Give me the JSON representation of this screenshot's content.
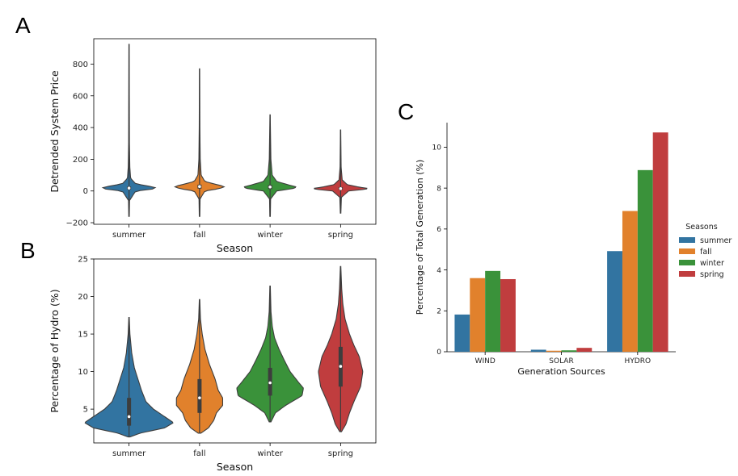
{
  "panels": {
    "a": "A",
    "b": "B",
    "c": "C"
  },
  "chart_data": [
    {
      "panel": "A",
      "type": "violin",
      "categories": [
        "summer",
        "fall",
        "winter",
        "spring"
      ],
      "colors": [
        "#3274a1",
        "#e1812c",
        "#3a923a",
        "#c03d3e"
      ],
      "xlabel": "Season",
      "ylabel": "Detrended System Price",
      "ylim": [
        -210,
        960
      ],
      "yticks": [
        -200,
        0,
        200,
        400,
        600,
        800
      ],
      "ytick_labels": [
        "−200",
        "0",
        "200",
        "400",
        "600",
        "800"
      ],
      "distributions": [
        {
          "min": -160,
          "max": 925,
          "median": 18,
          "q1": 10,
          "q3": 28,
          "profile": [
            [
              -160,
              0.01
            ],
            [
              -60,
              0.02
            ],
            [
              0,
              0.25
            ],
            [
              10,
              0.85
            ],
            [
              20,
              1.0
            ],
            [
              30,
              0.75
            ],
            [
              45,
              0.25
            ],
            [
              80,
              0.06
            ],
            [
              150,
              0.03
            ],
            [
              300,
              0.015
            ],
            [
              600,
              0.01
            ],
            [
              925,
              0.005
            ]
          ]
        },
        {
          "min": -160,
          "max": 770,
          "median": 28,
          "q1": 15,
          "q3": 40,
          "profile": [
            [
              -160,
              0.01
            ],
            [
              -50,
              0.02
            ],
            [
              0,
              0.2
            ],
            [
              15,
              0.75
            ],
            [
              28,
              0.95
            ],
            [
              40,
              0.65
            ],
            [
              60,
              0.2
            ],
            [
              100,
              0.06
            ],
            [
              200,
              0.025
            ],
            [
              400,
              0.012
            ],
            [
              770,
              0.005
            ]
          ]
        },
        {
          "min": -160,
          "max": 480,
          "median": 25,
          "q1": 12,
          "q3": 38,
          "profile": [
            [
              -160,
              0.01
            ],
            [
              -50,
              0.02
            ],
            [
              0,
              0.25
            ],
            [
              15,
              0.85
            ],
            [
              25,
              1.0
            ],
            [
              38,
              0.7
            ],
            [
              60,
              0.25
            ],
            [
              100,
              0.08
            ],
            [
              200,
              0.03
            ],
            [
              480,
              0.005
            ]
          ]
        },
        {
          "min": -140,
          "max": 385,
          "median": 15,
          "q1": 8,
          "q3": 24,
          "profile": [
            [
              -140,
              0.01
            ],
            [
              -40,
              0.03
            ],
            [
              0,
              0.3
            ],
            [
              10,
              0.9
            ],
            [
              16,
              1.05
            ],
            [
              24,
              0.7
            ],
            [
              40,
              0.25
            ],
            [
              70,
              0.06
            ],
            [
              150,
              0.02
            ],
            [
              385,
              0.005
            ]
          ]
        }
      ]
    },
    {
      "panel": "B",
      "type": "violin",
      "categories": [
        "summer",
        "fall",
        "winter",
        "spring"
      ],
      "colors": [
        "#3274a1",
        "#e1812c",
        "#3a923a",
        "#c03d3e"
      ],
      "xlabel": "Season",
      "ylabel": "Percentage of Hydro (%)",
      "ylim": [
        0.5,
        25
      ],
      "yticks": [
        5,
        10,
        15,
        20,
        25
      ],
      "ytick_labels": [
        "5",
        "10",
        "15",
        "20",
        "25"
      ],
      "distributions": [
        {
          "min": 1.3,
          "max": 17.2,
          "median": 4.0,
          "q1": 2.8,
          "q3": 6.5,
          "profile": [
            [
              1.3,
              0.02
            ],
            [
              1.8,
              0.25
            ],
            [
              2.5,
              0.8
            ],
            [
              3.2,
              1.0
            ],
            [
              4.0,
              0.8
            ],
            [
              5.0,
              0.55
            ],
            [
              6.0,
              0.38
            ],
            [
              7.5,
              0.28
            ],
            [
              9.0,
              0.2
            ],
            [
              10.5,
              0.12
            ],
            [
              12.5,
              0.06
            ],
            [
              15,
              0.02
            ],
            [
              17.2,
              0.005
            ]
          ]
        },
        {
          "min": 1.8,
          "max": 19.6,
          "median": 6.5,
          "q1": 4.5,
          "q3": 9.0,
          "profile": [
            [
              1.8,
              0.03
            ],
            [
              2.5,
              0.2
            ],
            [
              3.5,
              0.32
            ],
            [
              4.5,
              0.38
            ],
            [
              5.5,
              0.52
            ],
            [
              6.5,
              0.52
            ],
            [
              7.5,
              0.42
            ],
            [
              9,
              0.35
            ],
            [
              11,
              0.22
            ],
            [
              13,
              0.12
            ],
            [
              15,
              0.06
            ],
            [
              17,
              0.02
            ],
            [
              19.6,
              0.005
            ]
          ]
        },
        {
          "min": 3.3,
          "max": 21.4,
          "median": 8.5,
          "q1": 6.8,
          "q3": 10.5,
          "profile": [
            [
              3.3,
              0.02
            ],
            [
              4.5,
              0.12
            ],
            [
              5.5,
              0.35
            ],
            [
              6.8,
              0.72
            ],
            [
              7.8,
              0.75
            ],
            [
              8.5,
              0.65
            ],
            [
              10,
              0.45
            ],
            [
              11.5,
              0.32
            ],
            [
              13,
              0.2
            ],
            [
              14.5,
              0.1
            ],
            [
              16,
              0.05
            ],
            [
              18,
              0.02
            ],
            [
              21.4,
              0.005
            ]
          ]
        },
        {
          "min": 2.0,
          "max": 24.0,
          "median": 10.7,
          "q1": 8.0,
          "q3": 13.3,
          "profile": [
            [
              2,
              0.02
            ],
            [
              3,
              0.12
            ],
            [
              4.5,
              0.2
            ],
            [
              6,
              0.3
            ],
            [
              8,
              0.45
            ],
            [
              10,
              0.5
            ],
            [
              12,
              0.42
            ],
            [
              13.5,
              0.3
            ],
            [
              15,
              0.2
            ],
            [
              17,
              0.1
            ],
            [
              19,
              0.05
            ],
            [
              21,
              0.025
            ],
            [
              24,
              0.005
            ]
          ]
        }
      ]
    },
    {
      "panel": "C",
      "type": "bar",
      "categories": [
        "WIND",
        "SOLAR",
        "HYDRO"
      ],
      "xlabel": "Generation Sources",
      "ylabel": "Percentage of Total Generation (%)",
      "ylim": [
        0,
        11.2
      ],
      "yticks": [
        0,
        2,
        4,
        6,
        8,
        10
      ],
      "legend_title": "Seasons",
      "series": [
        {
          "name": "summer",
          "color": "#3274a1",
          "values": [
            1.82,
            0.1,
            4.92
          ]
        },
        {
          "name": "fall",
          "color": "#e1812c",
          "values": [
            3.6,
            0.05,
            6.88
          ]
        },
        {
          "name": "winter",
          "color": "#3a923a",
          "values": [
            3.95,
            0.07,
            8.88
          ]
        },
        {
          "name": "spring",
          "color": "#c03d3e",
          "values": [
            3.55,
            0.19,
            10.72
          ]
        }
      ]
    }
  ]
}
